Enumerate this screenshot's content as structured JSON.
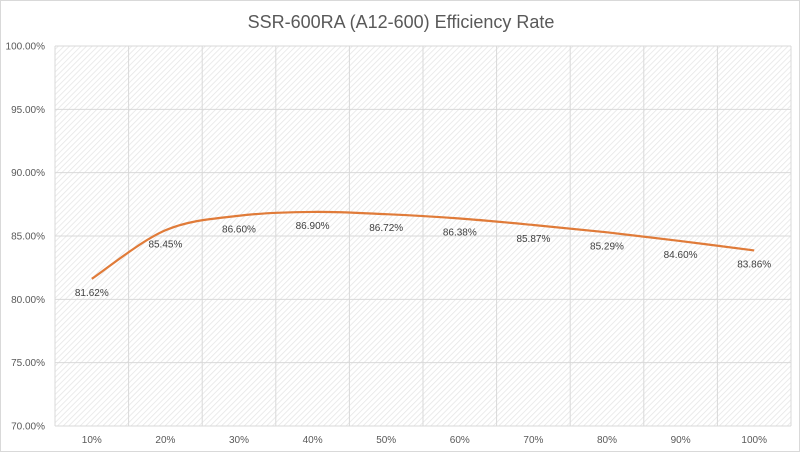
{
  "chart_data": {
    "type": "line",
    "title": "SSR-600RA (A12-600) Efficiency Rate",
    "xlabel": "",
    "ylabel": "",
    "categories": [
      "10%",
      "20%",
      "30%",
      "40%",
      "50%",
      "60%",
      "70%",
      "80%",
      "90%",
      "100%"
    ],
    "series": [
      {
        "values": [
          81.62,
          85.45,
          86.6,
          86.9,
          86.72,
          86.38,
          85.87,
          85.29,
          84.6,
          83.86
        ],
        "labels": [
          "81.62%",
          "85.45%",
          "86.60%",
          "86.90%",
          "86.72%",
          "86.38%",
          "85.87%",
          "85.29%",
          "84.60%",
          "83.86%"
        ],
        "color": "#e07b39",
        "smooth": true
      }
    ],
    "ylim": [
      70,
      100
    ],
    "yticks": [
      70,
      75,
      80,
      85,
      90,
      95,
      100
    ],
    "ytick_labels": [
      "70.00%",
      "75.00%",
      "80.00%",
      "85.00%",
      "90.00%",
      "95.00%",
      "100.00%"
    ],
    "grid": true,
    "legend": "none",
    "plot_background": "hatched-gray"
  }
}
